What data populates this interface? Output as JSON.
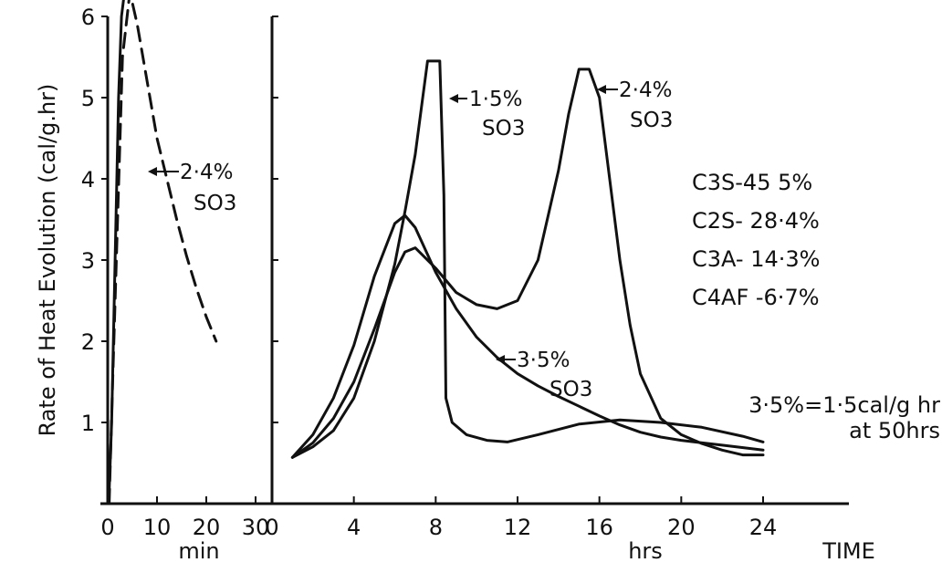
{
  "chart_data": [
    {
      "type": "line",
      "panel": "minutes",
      "ylabel": "Rate of Heat Evolution (cal/g.hr)",
      "xlabel": "min",
      "xlim": [
        0,
        30
      ],
      "ylim": [
        0,
        6
      ],
      "x_ticks": [
        "0",
        "10",
        "20",
        "30"
      ],
      "y_ticks": [
        "1",
        "2",
        "3",
        "4",
        "5",
        "6"
      ],
      "series": [
        {
          "name": "2·4% SO3",
          "line_style": "dashed",
          "x": [
            0.3,
            1,
            2,
            3,
            4.5,
            6,
            8,
            10,
            12,
            14,
            16,
            18,
            20,
            22
          ],
          "y": [
            0,
            1.5,
            3.5,
            5.5,
            6.3,
            5.9,
            5.2,
            4.5,
            4.0,
            3.5,
            3.05,
            2.65,
            2.3,
            2.0
          ]
        },
        {
          "name": "",
          "line_style": "solid",
          "x": [
            0.2,
            0.8,
            1.5,
            2.2,
            2.8,
            3.4
          ],
          "y": [
            0,
            1.0,
            3.0,
            5.0,
            6.0,
            6.3
          ]
        }
      ],
      "annotations": [
        {
          "text": "2·4%",
          "line2": "SO3"
        }
      ]
    },
    {
      "type": "line",
      "panel": "hours",
      "xlabel": "hrs",
      "xlim": [
        0,
        24
      ],
      "ylim": [
        0,
        6
      ],
      "x_ticks": [
        "0",
        "4",
        "8",
        "12",
        "16",
        "20",
        "24"
      ],
      "series": [
        {
          "name": "1·5% SO3",
          "x": [
            1,
            2,
            3,
            4,
            5,
            6,
            6.5,
            7,
            7.6,
            8.2,
            8.4,
            8.5,
            8.8,
            9.5,
            10.5,
            11.5,
            13,
            15,
            17,
            19,
            21,
            23,
            24
          ],
          "y": [
            0.57,
            0.7,
            0.9,
            1.3,
            2.0,
            2.95,
            3.6,
            4.3,
            5.45,
            5.45,
            3.8,
            1.3,
            1.0,
            0.85,
            0.78,
            0.76,
            0.85,
            0.98,
            1.03,
            1.0,
            0.94,
            0.83,
            0.76
          ]
        },
        {
          "name": "2·4% SO3",
          "x": [
            1,
            2,
            3,
            4,
            5,
            6,
            6.5,
            7,
            8,
            9,
            10,
            11,
            12,
            13,
            14,
            14.5,
            15,
            15.5,
            16,
            16.5,
            17,
            17.5,
            18,
            19,
            20,
            21,
            22,
            23,
            24
          ],
          "y": [
            0.57,
            0.75,
            1.05,
            1.5,
            2.15,
            2.85,
            3.1,
            3.15,
            2.9,
            2.6,
            2.45,
            2.4,
            2.5,
            3.0,
            4.1,
            4.8,
            5.35,
            5.35,
            5.0,
            4.0,
            3.0,
            2.2,
            1.6,
            1.05,
            0.85,
            0.74,
            0.66,
            0.6,
            0.6
          ]
        },
        {
          "name": "3·5% SO3",
          "x": [
            1,
            2,
            3,
            4,
            5,
            6,
            6.5,
            7,
            8,
            9,
            10,
            11,
            12,
            13,
            14,
            15,
            16,
            17,
            18,
            19,
            20,
            22,
            24
          ],
          "y": [
            0.57,
            0.85,
            1.3,
            1.95,
            2.8,
            3.45,
            3.55,
            3.4,
            2.85,
            2.4,
            2.05,
            1.8,
            1.6,
            1.45,
            1.32,
            1.2,
            1.08,
            0.97,
            0.88,
            0.82,
            0.78,
            0.72,
            0.66
          ]
        }
      ],
      "annotations": [
        {
          "text": "1·5%",
          "line2": "SO3"
        },
        {
          "text": "2·4%",
          "line2": "SO3"
        },
        {
          "text": "3·5%",
          "line2": "SO3"
        }
      ],
      "composition": [
        "C3S-45 5%",
        "C2S- 28·4%",
        "C3A- 14·3%",
        "C4AF -6·7%"
      ],
      "note": [
        "3·5%=1·5cal/g hr",
        "at 50hrs"
      ],
      "time_label": "TIME"
    }
  ]
}
